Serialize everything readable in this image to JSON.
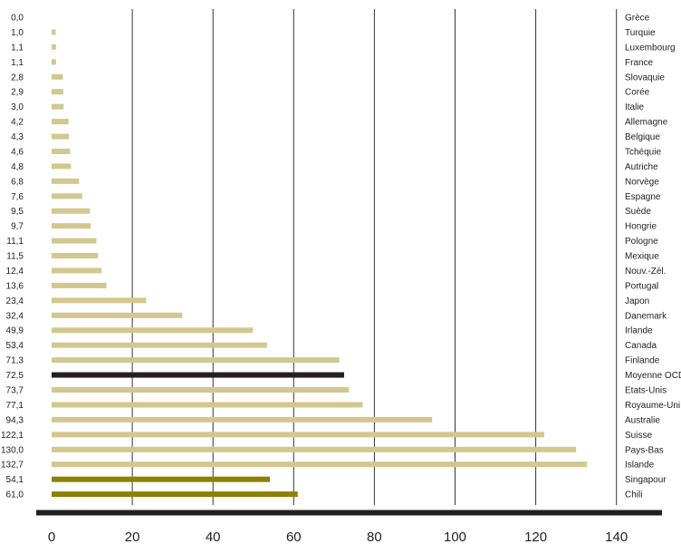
{
  "chart_data": {
    "type": "bar",
    "orientation": "horizontal",
    "title": "",
    "xlabel": "",
    "ylabel": "",
    "xlim": [
      0,
      150
    ],
    "x_ticks": [
      0,
      20,
      40,
      60,
      80,
      100,
      120,
      140
    ],
    "x_tick_labels": [
      "0",
      "20",
      "40",
      "60",
      "80",
      "100",
      "120",
      "140"
    ],
    "gridlines": "vertical",
    "value_labels": "left",
    "category_labels": "right",
    "colors": {
      "default": "#d3c78f",
      "average": "#231f20",
      "highlight": "#8c8100",
      "grid": "#333333",
      "axis": "#231f20"
    },
    "categories": [
      "Grèce",
      "Turquie",
      "Luxembourg",
      "France",
      "Slovaquie",
      "Corée",
      "Italie",
      "Allemagne",
      "Belgique",
      "Tchéquie",
      "Autriche",
      "Norvège",
      "Espagne",
      "Suède",
      "Hongrie",
      "Pologne",
      "Mexique",
      "Nouv.-Zél.",
      "Portugal",
      "Japon",
      "Danemark",
      "Irlande",
      "Canada",
      "Finlande",
      "Moyenne OCDE",
      "Etats-Unis",
      "Royaume-Uni",
      "Australie",
      "Suisse",
      "Pays-Bas",
      "Islande",
      "Singapour",
      "Chili"
    ],
    "values": [
      0.0,
      1.0,
      1.1,
      1.1,
      2.8,
      2.9,
      3.0,
      4.2,
      4.3,
      4.6,
      4.8,
      6.8,
      7.6,
      9.5,
      9.7,
      11.1,
      11.5,
      12.4,
      13.6,
      23.4,
      32.4,
      49.9,
      53.4,
      71.3,
      72.5,
      73.7,
      77.1,
      94.3,
      122.1,
      130.0,
      132.7,
      54.1,
      61.0
    ],
    "value_labels_text": [
      "0,0",
      "1,0",
      "1,1",
      "1,1",
      "2,8",
      "2,9",
      "3,0",
      "4,2",
      "4,3",
      "4,6",
      "4,8",
      "6,8",
      "7,6",
      "9,5",
      "9,7",
      "11,1",
      "11,5",
      "12,4",
      "13,6",
      "23,4",
      "32,4",
      "49,9",
      "53,4",
      "71,3",
      "72,5",
      "73,7",
      "77,1",
      "94,3",
      "122,1",
      "130,0",
      "132,7",
      "54,1",
      "61,0"
    ],
    "bar_roles": [
      "default",
      "default",
      "default",
      "default",
      "default",
      "default",
      "default",
      "default",
      "default",
      "default",
      "default",
      "default",
      "default",
      "default",
      "default",
      "default",
      "default",
      "default",
      "default",
      "default",
      "default",
      "default",
      "default",
      "default",
      "average",
      "default",
      "default",
      "default",
      "default",
      "default",
      "default",
      "highlight",
      "highlight"
    ]
  }
}
